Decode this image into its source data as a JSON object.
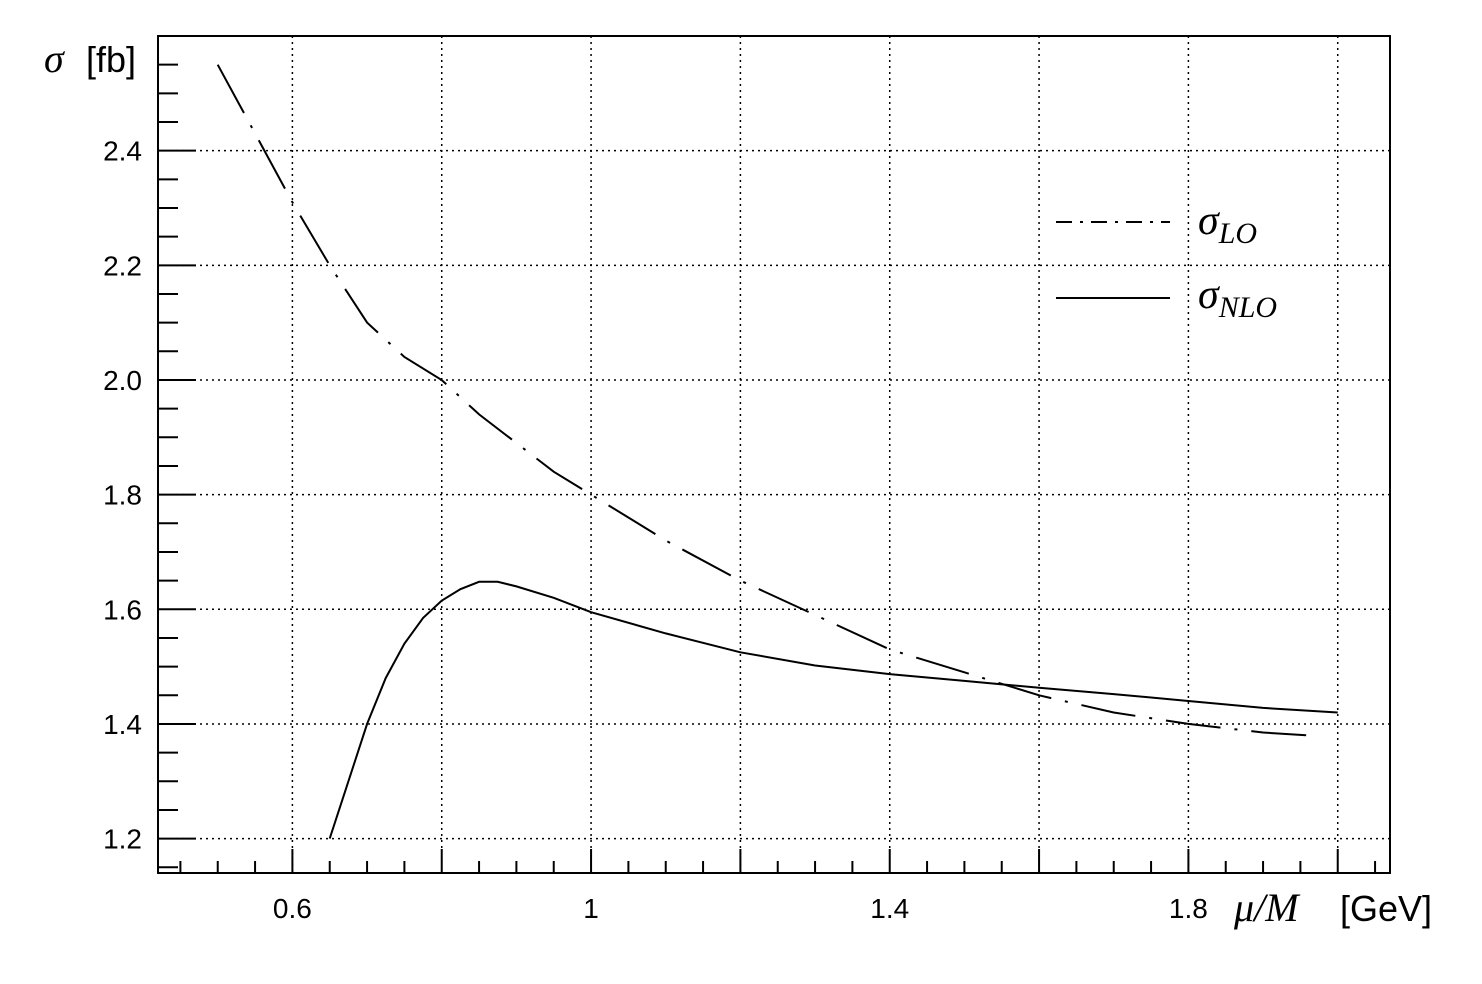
{
  "chart_data": {
    "type": "line",
    "title": "",
    "xlabel": "μ/M",
    "xunit": "[GeV]",
    "ylabel": "σ",
    "yunit": "[fb]",
    "xlim": [
      0.42,
      2.07
    ],
    "ylim": [
      1.14,
      2.6
    ],
    "xticks": [
      0.6,
      1,
      1.4,
      1.8
    ],
    "yticks": [
      1.2,
      1.4,
      1.6,
      1.8,
      2.0,
      2.2,
      2.4
    ],
    "xtick_labels": [
      "0.6",
      "1",
      "1.4",
      "1.8"
    ],
    "ytick_labels": [
      "1.2",
      "1.4",
      "1.6",
      "1.8",
      "2.0",
      "2.2",
      "2.4"
    ],
    "grid": true,
    "legend_position": "top-right",
    "series": [
      {
        "name": "σ",
        "subscript": "LO",
        "style": "dashdot",
        "x": [
          0.5,
          0.55,
          0.6,
          0.65,
          0.7,
          0.75,
          0.8,
          0.85,
          0.9,
          0.95,
          1.0,
          1.1,
          1.2,
          1.3,
          1.4,
          1.5,
          1.6,
          1.7,
          1.8,
          1.9,
          1.96
        ],
        "y": [
          2.55,
          2.43,
          2.31,
          2.2,
          2.1,
          2.04,
          2.0,
          1.94,
          1.89,
          1.84,
          1.8,
          1.72,
          1.65,
          1.59,
          1.53,
          1.49,
          1.45,
          1.42,
          1.4,
          1.385,
          1.38
        ]
      },
      {
        "name": "σ",
        "subscript": "NLO",
        "style": "solid",
        "x": [
          0.65,
          0.675,
          0.7,
          0.725,
          0.75,
          0.775,
          0.8,
          0.825,
          0.85,
          0.875,
          0.9,
          0.95,
          1.0,
          1.1,
          1.2,
          1.3,
          1.4,
          1.5,
          1.6,
          1.7,
          1.8,
          1.9,
          2.0
        ],
        "y": [
          1.2,
          1.3,
          1.4,
          1.48,
          1.54,
          1.585,
          1.615,
          1.635,
          1.648,
          1.648,
          1.64,
          1.62,
          1.595,
          1.558,
          1.525,
          1.502,
          1.487,
          1.475,
          1.463,
          1.452,
          1.44,
          1.428,
          1.42
        ]
      }
    ]
  }
}
